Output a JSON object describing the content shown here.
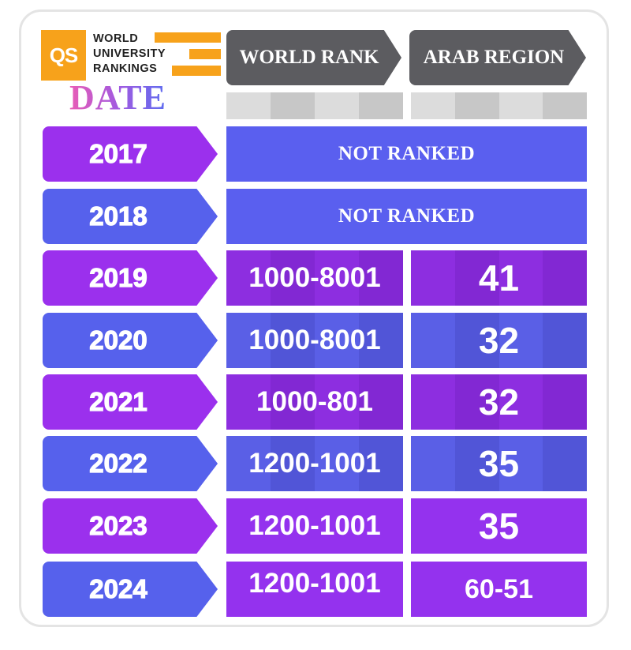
{
  "logo": {
    "brand": "QS",
    "lines": [
      "WORLD",
      "UNIVERSITY",
      "RANKINGS"
    ],
    "accent_color": "#f7a21b"
  },
  "title": "DATE",
  "headers": {
    "world_rank": "WORLD RANK",
    "arab_region": "ARAB REGION"
  },
  "rows": [
    {
      "year": "2017",
      "merged": "NOT RANKED"
    },
    {
      "year": "2018",
      "merged": "NOT RANKED"
    },
    {
      "year": "2019",
      "world_rank": "1000-8001",
      "arab_region": "41"
    },
    {
      "year": "2020",
      "world_rank": "1000-8001",
      "arab_region": "32"
    },
    {
      "year": "2021",
      "world_rank": "1000-801",
      "arab_region": "32"
    },
    {
      "year": "2022",
      "world_rank": "1200-1001",
      "arab_region": "35"
    },
    {
      "year": "2023",
      "world_rank": "1200-1001",
      "arab_region": "35"
    },
    {
      "year": "2024",
      "world_rank": "1200-1001",
      "arab_region": "60-51"
    }
  ],
  "colors": {
    "purple": "#9b30ed",
    "blue": "#5661ec",
    "header_gray": "#5c5c60"
  }
}
